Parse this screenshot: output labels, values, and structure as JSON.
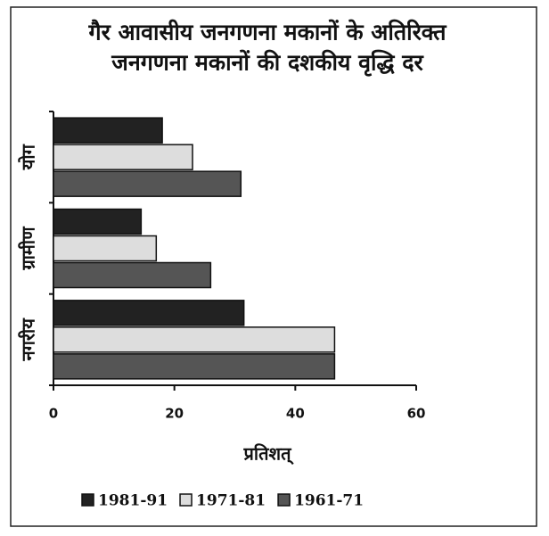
{
  "chart_data": {
    "type": "barh",
    "title": [
      "गैर आवासीय जनगणना मकानों के अतिरिक्त",
      "जनगणना मकानों की दशकीय वृद्धि दर"
    ],
    "x_label": "प्रतिशत्",
    "categories": [
      "योग",
      "ग्रामीण",
      "नगरीय"
    ],
    "series": [
      {
        "name": "1981-91",
        "color": "#222222",
        "values": [
          18,
          14.5,
          31.5
        ]
      },
      {
        "name": "1971-81",
        "color": "#dddddd",
        "values": [
          23,
          17,
          46.5
        ]
      },
      {
        "name": "1961-71",
        "color": "#555555",
        "values": [
          31,
          26,
          46.5
        ]
      }
    ],
    "xlim": [
      0,
      60
    ],
    "xticks": [
      0,
      20,
      40,
      60
    ],
    "legend": "bottom"
  }
}
